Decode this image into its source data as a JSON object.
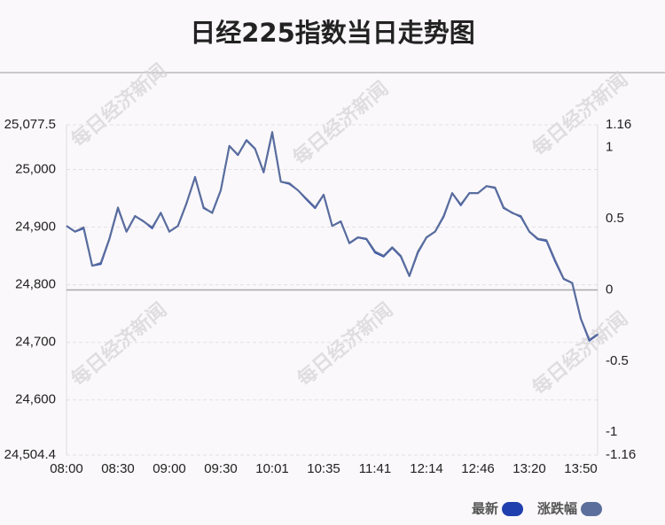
{
  "chart_data": {
    "type": "line",
    "title": "日经225指数当日走势图",
    "watermark": "每日经济新闻",
    "categories": [
      "08:00",
      null,
      null,
      null,
      null,
      null,
      "08:30",
      null,
      null,
      null,
      null,
      null,
      "09:00",
      null,
      null,
      null,
      null,
      null,
      "09:30",
      null,
      null,
      null,
      null,
      null,
      "10:01",
      null,
      null,
      null,
      null,
      null,
      "10:35",
      null,
      null,
      null,
      null,
      null,
      "11:41",
      null,
      null,
      null,
      null,
      null,
      "12:14",
      null,
      null,
      null,
      null,
      null,
      "12:46",
      null,
      null,
      null,
      null,
      null,
      "13:20",
      null,
      null,
      null,
      null,
      null,
      "13:50",
      null,
      null
    ],
    "series": [
      {
        "name": "最新",
        "color": "#1f3fae",
        "values": [
          24902,
          24892,
          24898,
          24833,
          24836,
          24879,
          24933,
          24892,
          24919,
          24910,
          24898,
          24925,
          24892,
          24902,
          24941,
          24987,
          24933,
          24925,
          24964,
          25041,
          25025,
          25051,
          25036,
          24995,
          25064,
          24979,
          24975,
          24964,
          24948,
          24933,
          24956,
          24902,
          24910,
          24872,
          24882,
          24879,
          24856,
          24849,
          24864,
          24849,
          24815,
          24856,
          24882,
          24892,
          24918,
          24959,
          24938,
          24959,
          24959,
          24971,
          24968,
          24933,
          24925,
          24918,
          24892,
          24879,
          24876,
          24841,
          24810,
          24803,
          24741,
          24703,
          24714
        ]
      },
      {
        "name": "涨跌幅",
        "color": "#5b6e9c",
        "axis": "y2",
        "values": [
          0.45,
          0.41,
          0.44,
          0.17,
          0.19,
          0.36,
          0.58,
          0.41,
          0.52,
          0.48,
          0.44,
          0.54,
          0.41,
          0.45,
          0.61,
          0.79,
          0.58,
          0.54,
          0.7,
          1.01,
          0.95,
          1.05,
          0.99,
          0.83,
          1.11,
          0.76,
          0.75,
          0.7,
          0.64,
          0.58,
          0.67,
          0.45,
          0.48,
          0.33,
          0.37,
          0.36,
          0.27,
          0.24,
          0.3,
          0.24,
          0.1,
          0.27,
          0.37,
          0.41,
          0.52,
          0.68,
          0.6,
          0.68,
          0.68,
          0.73,
          0.72,
          0.58,
          0.54,
          0.52,
          0.41,
          0.36,
          0.35,
          0.21,
          0.08,
          0.05,
          -0.2,
          -0.35,
          -0.31
        ]
      }
    ],
    "ylim": [
      24504.4,
      25077.5
    ],
    "yticks": [
      {
        "value": 24504.4,
        "label": "24,504.4"
      },
      {
        "value": 24600,
        "label": "24,600"
      },
      {
        "value": 24700,
        "label": "24,700"
      },
      {
        "value": 24800,
        "label": "24,800"
      },
      {
        "value": 24900,
        "label": "24,900"
      },
      {
        "value": 25000,
        "label": "25,000"
      },
      {
        "value": 25077.5,
        "label": "25,077.5"
      }
    ],
    "y2lim": [
      -1.16,
      1.16
    ],
    "y2ticks": [
      -1.16,
      -1,
      -0.5,
      0,
      0.5,
      1,
      1.16
    ],
    "grid": true,
    "legend": "bottom-right"
  }
}
